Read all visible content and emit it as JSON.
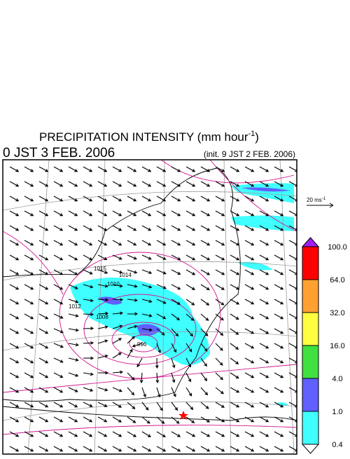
{
  "header": {
    "title": "PRECIPITATION INTENSITY (mm hour",
    "title_unit_exponent": "-1",
    "title_close": ")",
    "valid_time": "0 JST 3 FEB. 2006",
    "init_time": "(init. 9 JST 2 FEB. 2006)"
  },
  "vector_reference": {
    "label": "20 ms",
    "exponent": "-1"
  },
  "isobar_labels": [
    "1015",
    "1014",
    "1010",
    "1012",
    "1008",
    "996"
  ],
  "colorbar": {
    "labels": [
      "100.0",
      "64.0",
      "32.0",
      "16.0",
      "4.0",
      "1.0",
      "0.4"
    ],
    "colors": [
      "#a020f0",
      "#ff0000",
      "#ffa030",
      "#ffff40",
      "#40e040",
      "#6060ff",
      "#40ffff",
      "#ffffff"
    ]
  }
}
